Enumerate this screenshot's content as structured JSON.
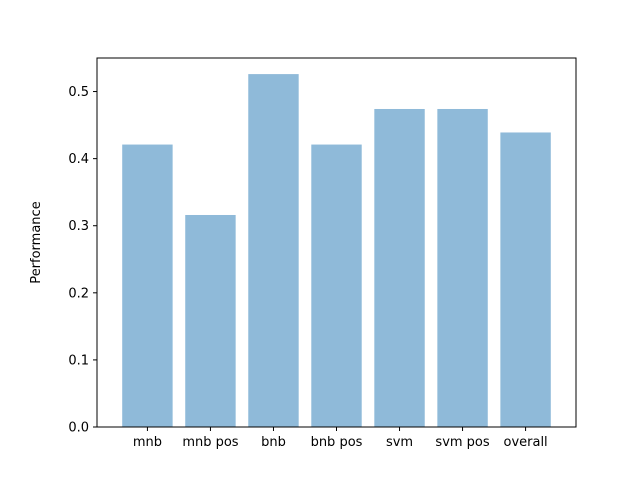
{
  "chart_data": {
    "type": "bar",
    "title": "",
    "xlabel": "",
    "ylabel": "Performance",
    "categories": [
      "mnb",
      "mnb pos",
      "bnb",
      "bnb pos",
      "svm",
      "svm pos",
      "overall"
    ],
    "values": [
      0.421,
      0.316,
      0.526,
      0.421,
      0.474,
      0.474,
      0.439
    ],
    "ylim": [
      0,
      0.55
    ],
    "yticks": [
      0.0,
      0.1,
      0.2,
      0.3,
      0.4,
      0.5
    ],
    "ytick_labels": [
      "0.0",
      "0.1",
      "0.2",
      "0.3",
      "0.4",
      "0.5"
    ],
    "bar_color": "#8fbad9",
    "grid": false,
    "legend": "none"
  }
}
